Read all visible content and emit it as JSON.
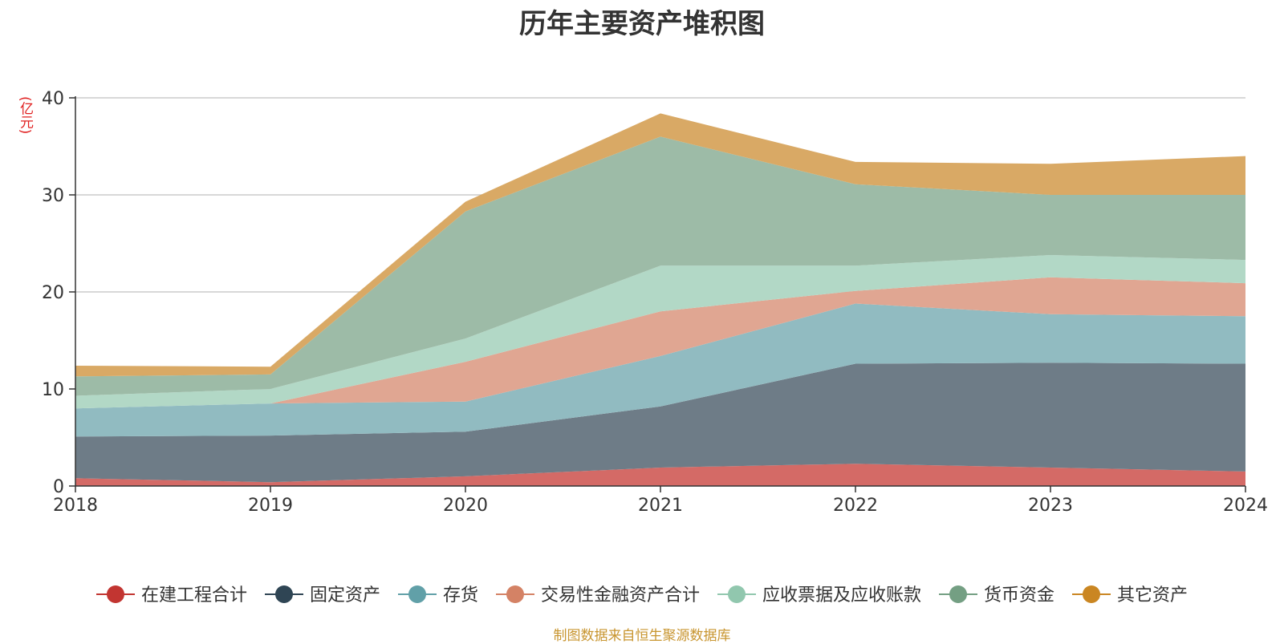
{
  "chart_data": {
    "type": "area",
    "stacked": true,
    "title": "历年主要资产堆积图",
    "unit_label": "(亿元)",
    "source_note": "制图数据来自恒生聚源数据库",
    "x": [
      "2018",
      "2019",
      "2020",
      "2021",
      "2022",
      "2023",
      "2024"
    ],
    "ylim": [
      0,
      40
    ],
    "yticks": [
      0,
      10,
      20,
      30,
      40
    ],
    "grid": true,
    "legend_position": "bottom",
    "series": [
      {
        "name": "在建工程合计",
        "color": "#c23531",
        "fill": "#d46a66",
        "values": [
          0.8,
          0.4,
          1.0,
          1.9,
          2.3,
          1.9,
          1.5
        ]
      },
      {
        "name": "固定资产",
        "color": "#2f4554",
        "fill": "#6e7c87",
        "values": [
          4.3,
          4.8,
          4.6,
          6.3,
          10.3,
          10.8,
          11.1
        ]
      },
      {
        "name": "存货",
        "color": "#61a0a8",
        "fill": "#91bbc1",
        "values": [
          2.9,
          3.3,
          3.1,
          5.2,
          6.2,
          5.0,
          4.9
        ]
      },
      {
        "name": "交易性金融资产合计",
        "color": "#d48265",
        "fill": "#e0a692",
        "values": [
          0.0,
          0.0,
          4.1,
          4.6,
          1.3,
          3.8,
          3.4
        ]
      },
      {
        "name": "应收票据及应收账款",
        "color": "#91c7ae",
        "fill": "#b2d8c6",
        "values": [
          1.3,
          1.5,
          2.4,
          4.7,
          2.6,
          2.3,
          2.4
        ]
      },
      {
        "name": "货币资金",
        "color": "#749f83",
        "fill": "#9dbba7",
        "values": [
          2.0,
          1.5,
          13.1,
          13.3,
          8.4,
          6.2,
          6.7
        ]
      },
      {
        "name": "其它资产",
        "color": "#ca8622",
        "fill": "#d9a965",
        "values": [
          1.1,
          0.8,
          1.0,
          2.4,
          2.3,
          3.2,
          4.0
        ]
      }
    ]
  }
}
